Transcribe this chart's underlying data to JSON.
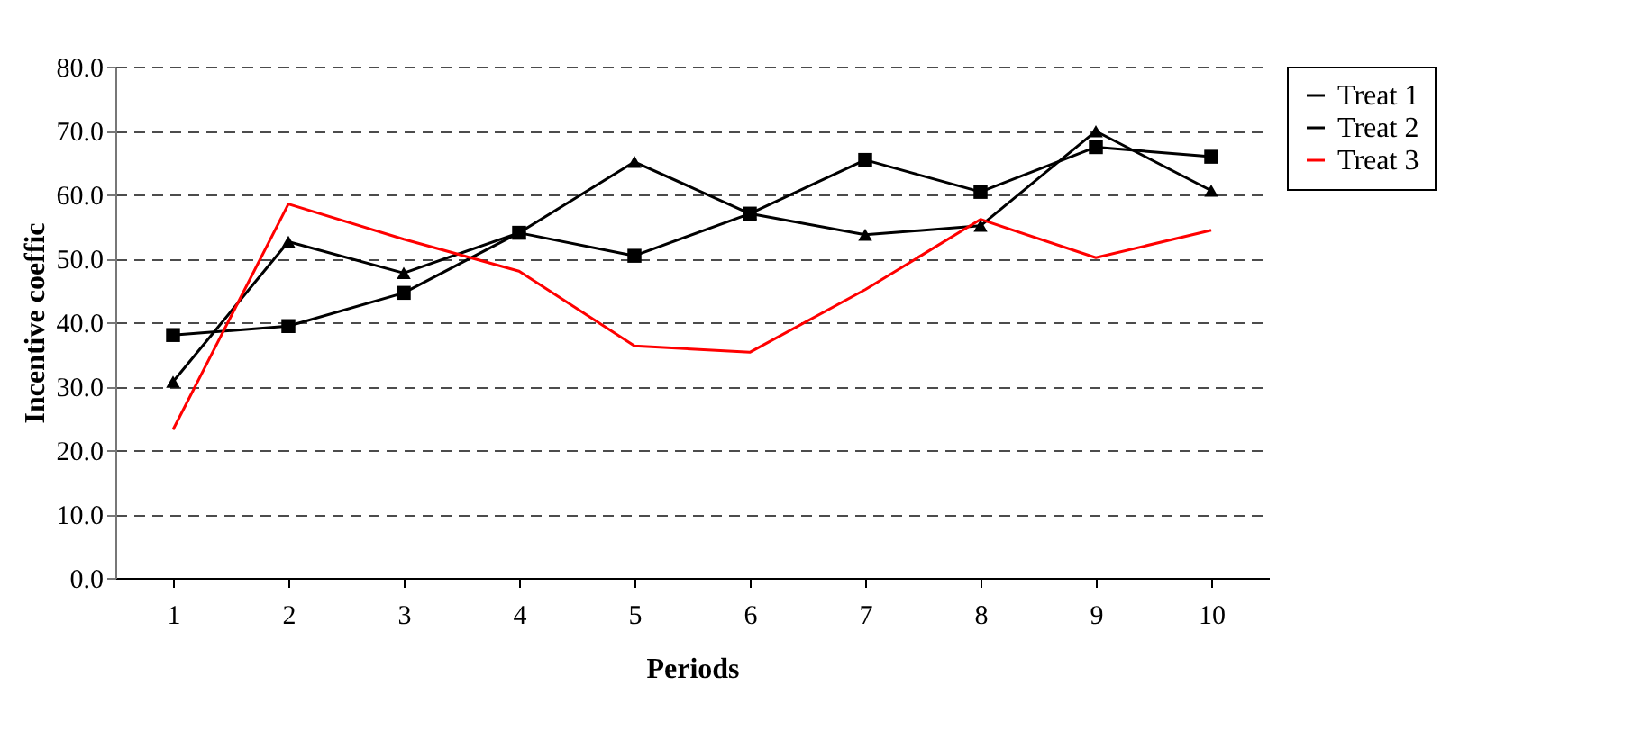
{
  "chart_data": {
    "type": "line",
    "xlabel": "Periods",
    "ylabel": "Incentive coeffic",
    "categories": [
      "1",
      "2",
      "3",
      "4",
      "5",
      "6",
      "7",
      "8",
      "9",
      "10"
    ],
    "series": [
      {
        "name": "Treat 1",
        "color": "#000000",
        "marker": "square",
        "values": [
          38.0,
          39.4,
          44.6,
          54.0,
          50.4,
          57.0,
          65.4,
          60.4,
          67.4,
          65.9
        ]
      },
      {
        "name": "Treat 2",
        "color": "#000000",
        "marker": "triangle",
        "values": [
          30.7,
          52.6,
          47.7,
          54.0,
          65.1,
          57.0,
          53.7,
          55.1,
          69.9,
          60.6
        ]
      },
      {
        "name": "Treat 3",
        "color": "#ff0000",
        "marker": "none",
        "values": [
          23.2,
          58.5,
          53.0,
          48.0,
          36.3,
          35.3,
          45.1,
          56.1,
          50.1,
          54.4
        ]
      }
    ],
    "ylim": [
      0,
      80
    ],
    "yticks": [
      {
        "value": 0,
        "label": "0.0"
      },
      {
        "value": 10,
        "label": "10.0"
      },
      {
        "value": 20,
        "label": "20.0"
      },
      {
        "value": 30,
        "label": "30.0"
      },
      {
        "value": 40,
        "label": "40.0"
      },
      {
        "value": 50,
        "label": "50.0"
      },
      {
        "value": 60,
        "label": "60.0"
      },
      {
        "value": 70,
        "label": "70.0"
      },
      {
        "value": 80,
        "label": "80.0"
      }
    ],
    "grid": "y",
    "legend": "right",
    "line_style": "solid"
  }
}
